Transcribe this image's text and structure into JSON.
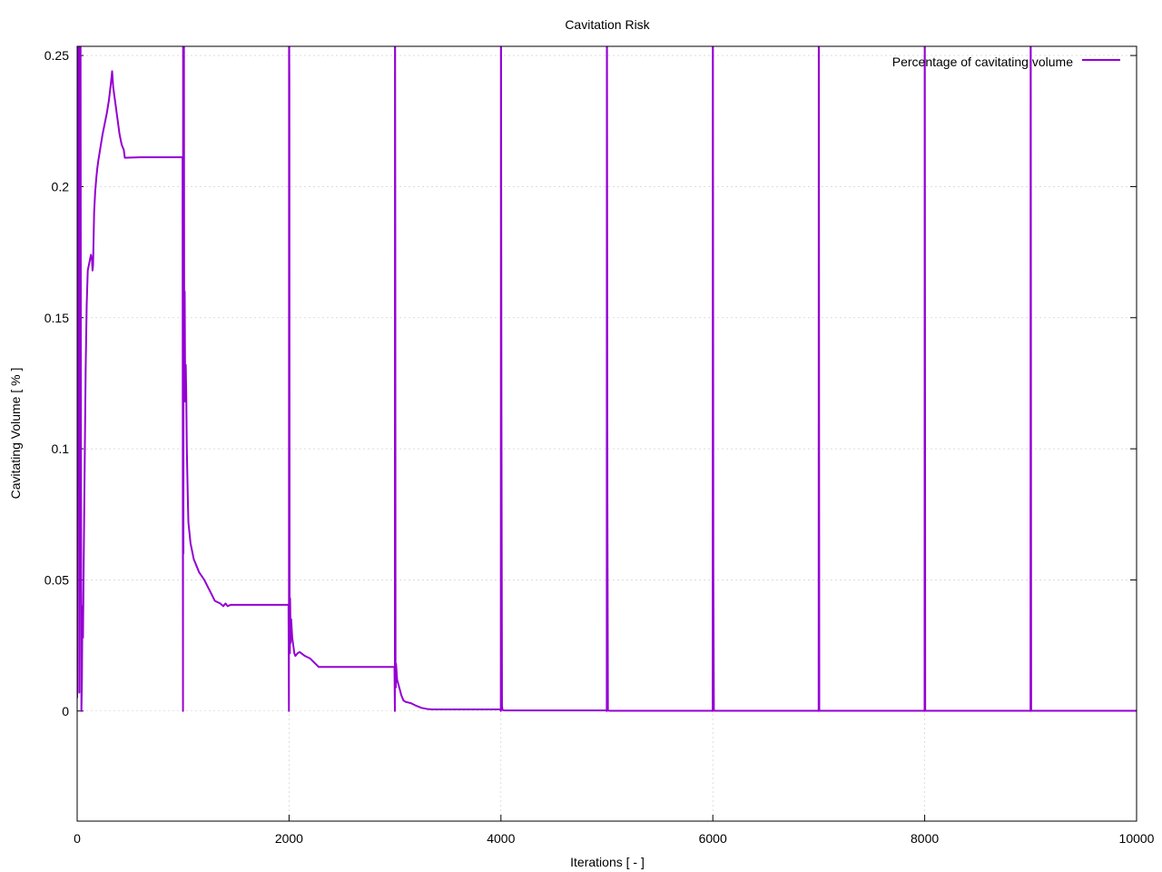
{
  "chart_data": {
    "type": "line",
    "title": "Cavitation Risk",
    "xlabel": "Iterations [ - ]",
    "ylabel": "Cavitating Volume [ % ]",
    "xlim": [
      0,
      10000
    ],
    "ylim": [
      -0.042,
      0.2535
    ],
    "xticks": [
      0,
      2000,
      4000,
      6000,
      8000,
      10000
    ],
    "xtick_labels": [
      "0",
      "2000",
      "4000",
      "6000",
      "8000",
      "10000"
    ],
    "yticks": [
      0,
      0.05,
      0.1,
      0.15,
      0.2,
      0.25
    ],
    "ytick_labels": [
      "0",
      "0.05",
      "0.1",
      "0.15",
      "0.2",
      "0.25"
    ],
    "grid": true,
    "legend_position": "top-right",
    "series": [
      {
        "name": "Percentage of cavitating volume",
        "color": "#9400d3",
        "x": [
          0,
          4,
          8,
          12,
          16,
          20,
          24,
          28,
          32,
          36,
          40,
          45,
          50,
          55,
          60,
          65,
          70,
          80,
          90,
          100,
          110,
          120,
          130,
          140,
          145,
          150,
          155,
          160,
          170,
          180,
          190,
          200,
          220,
          240,
          260,
          280,
          300,
          320,
          330,
          340,
          360,
          380,
          400,
          420,
          440,
          450,
          460,
          600,
          800,
          995,
          999,
          1000,
          1001,
          1003,
          1005,
          1008,
          1010,
          1012,
          1015,
          1020,
          1025,
          1030,
          1035,
          1040,
          1045,
          1050,
          1060,
          1070,
          1080,
          1100,
          1150,
          1200,
          1250,
          1300,
          1350,
          1380,
          1400,
          1420,
          1450,
          1500,
          1700,
          1995,
          1999,
          2000,
          2001,
          2003,
          2005,
          2008,
          2010,
          2015,
          2020,
          2030,
          2040,
          2050,
          2060,
          2080,
          2100,
          2150,
          2200,
          2250,
          2280,
          2300,
          2400,
          2600,
          2995,
          2999,
          3000,
          3001,
          3003,
          3005,
          3008,
          3010,
          3020,
          3040,
          3060,
          3080,
          3100,
          3150,
          3200,
          3250,
          3300,
          3350,
          3500,
          3800,
          3995,
          3999,
          4000,
          4001,
          4005,
          4010,
          4015,
          4020,
          4030,
          4050,
          4100,
          4300,
          4995,
          4999,
          5000,
          5001,
          5005,
          5010,
          5015,
          5020,
          5040,
          5100,
          5300,
          5995,
          5999,
          6000,
          6001,
          6005,
          6010,
          6015,
          6020,
          6040,
          6200,
          6995,
          6999,
          7000,
          7001,
          7005,
          7010,
          7040,
          7300,
          7995,
          7999,
          8000,
          8001,
          8005,
          8010,
          8040,
          8500,
          8995,
          8999,
          9000,
          9001,
          9005,
          9010,
          9040,
          9500,
          10000
        ],
        "y": [
          0.005,
          0.26,
          0.26,
          0.26,
          0.26,
          0.007,
          0.26,
          0.26,
          0.26,
          0.1,
          0.0,
          0.012,
          0.04,
          0.028,
          0.05,
          0.07,
          0.09,
          0.13,
          0.155,
          0.168,
          0.17,
          0.172,
          0.174,
          0.172,
          0.168,
          0.17,
          0.18,
          0.19,
          0.198,
          0.203,
          0.207,
          0.21,
          0.215,
          0.22,
          0.224,
          0.228,
          0.233,
          0.24,
          0.244,
          0.238,
          0.232,
          0.226,
          0.22,
          0.216,
          0.214,
          0.211,
          0.211,
          0.2112,
          0.2112,
          0.2112,
          0.0,
          0.26,
          0.26,
          0.06,
          0.26,
          0.26,
          0.16,
          0.12,
          0.16,
          0.118,
          0.132,
          0.12,
          0.1,
          0.09,
          0.08,
          0.072,
          0.068,
          0.064,
          0.062,
          0.058,
          0.053,
          0.05,
          0.046,
          0.042,
          0.041,
          0.04,
          0.041,
          0.04,
          0.0405,
          0.0405,
          0.0405,
          0.0405,
          0.0,
          0.26,
          0.26,
          0.24,
          0.04,
          0.022,
          0.043,
          0.026,
          0.035,
          0.028,
          0.025,
          0.022,
          0.021,
          0.022,
          0.0225,
          0.021,
          0.02,
          0.018,
          0.0168,
          0.0168,
          0.0168,
          0.0168,
          0.0168,
          0.0,
          0.26,
          0.26,
          0.178,
          0.016,
          0.009,
          0.018,
          0.012,
          0.009,
          0.006,
          0.004,
          0.0035,
          0.003,
          0.002,
          0.0012,
          0.0008,
          0.0006,
          0.0006,
          0.0006,
          0.0006,
          0.0,
          0.26,
          0.26,
          0.113,
          0.002,
          0.0004,
          0.0003,
          0.0002,
          0.0002,
          0.0002,
          0.0002,
          0.0002,
          0.0,
          0.26,
          0.26,
          0.081,
          0.0003,
          0.0002,
          0.0001,
          0.0001,
          0.0001,
          0.0001,
          0.0001,
          0.0,
          0.26,
          0.26,
          0.051,
          0.0002,
          0.0001,
          0.0001,
          0.0001,
          0.0001,
          0.0001,
          0.0,
          0.26,
          0.26,
          0.0002,
          0.0001,
          0.0001,
          0.0001,
          0.0001,
          0.0,
          0.26,
          0.26,
          0.0002,
          0.0001,
          0.0001,
          0.0001,
          0.0001,
          0.0,
          0.26,
          0.26,
          0.0002,
          0.0001,
          0.0001,
          0.0001,
          0.0001
        ]
      }
    ]
  }
}
